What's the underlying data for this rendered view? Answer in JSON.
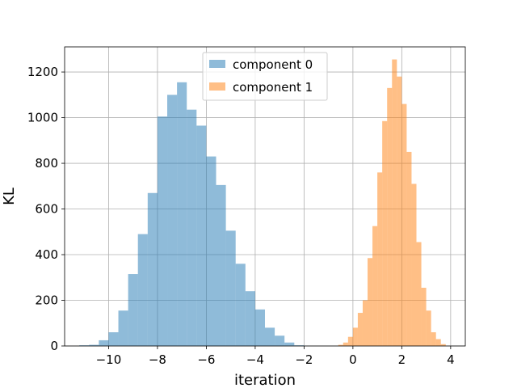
{
  "chart_data": {
    "type": "bar",
    "subtype": "histogram",
    "xlabel": "iteration",
    "ylabel": "KL",
    "xlim": [
      -11.8,
      4.6
    ],
    "ylim": [
      0,
      1310
    ],
    "xticks": [
      -10,
      -8,
      -6,
      -4,
      -2,
      0,
      2,
      4
    ],
    "xtick_labels": [
      "−10",
      "−8",
      "−6",
      "−4",
      "−2",
      "0",
      "2",
      "4"
    ],
    "yticks": [
      0,
      200,
      400,
      600,
      800,
      1000,
      1200
    ],
    "ytick_labels": [
      "0",
      "200",
      "400",
      "600",
      "800",
      "1000",
      "1200"
    ],
    "grid": true,
    "legend_position": "top-center",
    "series": [
      {
        "name": "component 0",
        "color": "#1f77b4",
        "alpha": 0.5,
        "bin_edges": [
          -11.2,
          -10.8,
          -10.4,
          -10.0,
          -9.6,
          -9.2,
          -8.8,
          -8.4,
          -8.0,
          -7.6,
          -7.2,
          -6.8,
          -6.4,
          -6.0,
          -5.6,
          -5.2,
          -4.8,
          -4.4,
          -4.0,
          -3.6,
          -3.2,
          -2.8,
          -2.4,
          -2.0
        ],
        "values": [
          3,
          5,
          25,
          60,
          155,
          315,
          490,
          670,
          1005,
          1100,
          1155,
          1035,
          965,
          830,
          705,
          505,
          360,
          240,
          160,
          80,
          45,
          15,
          3
        ]
      },
      {
        "name": "component 1",
        "color": "#ff7f0e",
        "alpha": 0.5,
        "bin_edges": [
          -0.6,
          -0.4,
          -0.2,
          0.0,
          0.2,
          0.4,
          0.6,
          0.8,
          1.0,
          1.2,
          1.4,
          1.6,
          1.8,
          2.0,
          2.2,
          2.4,
          2.6,
          2.8,
          3.0,
          3.2,
          3.4,
          3.6,
          3.8
        ],
        "values": [
          5,
          15,
          40,
          80,
          145,
          200,
          385,
          525,
          760,
          985,
          1130,
          1255,
          1180,
          1060,
          850,
          710,
          455,
          255,
          155,
          60,
          30,
          8
        ]
      }
    ]
  }
}
